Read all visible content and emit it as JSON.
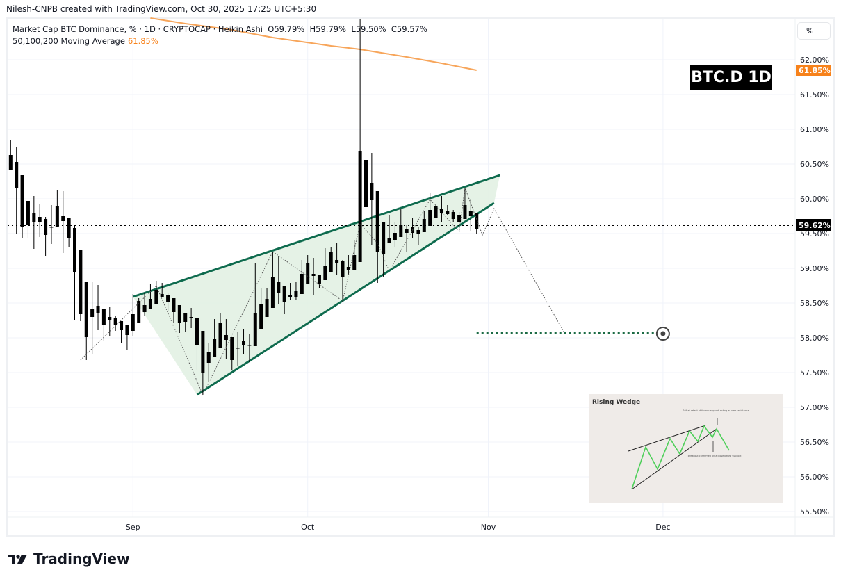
{
  "credit": "Nilesh-CNPB created with TradingView.com, Oct 30, 2025 17:25 UTC+5:30",
  "legend": {
    "symbol_line": "Market Cap BTC Dominance, % · 1D · CRYPTOCAP · Heikin Ashi",
    "open": "O59.79%",
    "high": "H59.79%",
    "low": "L59.50%",
    "close": "C59.57%",
    "ma_label": "50,100,200 Moving Average",
    "ma_value": "61.85%"
  },
  "scale_button": "%",
  "symbol_badge": "BTC.D 1D",
  "logo_text": "TradingView",
  "colors": {
    "candle": "#000000",
    "ma": "#f7a55a",
    "ma_label": "#f7821b",
    "wedge": "#0e6b4e",
    "wedge_fill": "#e2f1e3",
    "target": "#1b6b45",
    "last_price_bg": "#000000"
  },
  "chart_data": {
    "type": "candlestick",
    "chart_style": "Heikin Ashi",
    "ylim": [
      55.3,
      62.6
    ],
    "y_ticks": [
      "62.00%",
      "61.50%",
      "61.00%",
      "60.50%",
      "60.00%",
      "59.50%",
      "59.00%",
      "58.50%",
      "58.00%",
      "57.50%",
      "57.00%",
      "56.50%",
      "56.00%",
      "55.50%"
    ],
    "x_ticks": [
      {
        "label": "Sep",
        "date": "2025-09-01"
      },
      {
        "label": "Oct",
        "date": "2025-10-01"
      },
      {
        "label": "Nov",
        "date": "2025-11-01"
      },
      {
        "label": "Dec",
        "date": "2025-12-01"
      }
    ],
    "grid": true,
    "candles_columns": [
      "date",
      "open",
      "high",
      "low",
      "close"
    ],
    "candles": [
      [
        "2025-08-11",
        60.63,
        60.85,
        60.41,
        60.41
      ],
      [
        "2025-08-12",
        60.53,
        60.75,
        59.49,
        60.15
      ],
      [
        "2025-08-13",
        60.34,
        60.34,
        59.43,
        59.59
      ],
      [
        "2025-08-14",
        59.97,
        59.97,
        59.43,
        59.62
      ],
      [
        "2025-08-15",
        59.8,
        60.04,
        59.28,
        59.66
      ],
      [
        "2025-08-16",
        59.74,
        59.92,
        59.45,
        59.67
      ],
      [
        "2025-08-17",
        59.71,
        59.74,
        59.18,
        59.48
      ],
      [
        "2025-08-18",
        59.6,
        59.91,
        59.35,
        59.59
      ],
      [
        "2025-08-19",
        59.59,
        60.12,
        59.59,
        59.9
      ],
      [
        "2025-08-20",
        59.75,
        60.11,
        59.22,
        59.68
      ],
      [
        "2025-08-21",
        59.72,
        59.72,
        59.3,
        59.43
      ],
      [
        "2025-08-22",
        59.58,
        59.63,
        58.26,
        58.94
      ],
      [
        "2025-08-23",
        59.26,
        59.26,
        58.24,
        58.34
      ],
      [
        "2025-08-24",
        58.81,
        58.81,
        57.68,
        58.01
      ],
      [
        "2025-08-25",
        58.42,
        58.8,
        57.76,
        58.3
      ],
      [
        "2025-08-26",
        58.46,
        58.76,
        58.11,
        58.35
      ],
      [
        "2025-08-27",
        58.41,
        58.41,
        57.95,
        58.18
      ],
      [
        "2025-08-28",
        58.3,
        58.44,
        58.03,
        58.25
      ],
      [
        "2025-08-29",
        58.28,
        58.31,
        58.1,
        58.18
      ],
      [
        "2025-08-30",
        58.24,
        58.24,
        57.92,
        58.11
      ],
      [
        "2025-08-31",
        58.18,
        58.18,
        57.83,
        58.04
      ],
      [
        "2025-09-01",
        58.1,
        58.63,
        58.02,
        58.34
      ],
      [
        "2025-09-02",
        58.22,
        58.57,
        58.22,
        58.53
      ],
      [
        "2025-09-03",
        58.37,
        58.65,
        58.32,
        58.47
      ],
      [
        "2025-09-04",
        58.41,
        58.77,
        58.41,
        58.56
      ],
      [
        "2025-09-05",
        58.48,
        58.82,
        58.48,
        58.69
      ],
      [
        "2025-09-06",
        58.63,
        58.79,
        58.58,
        58.58
      ],
      [
        "2025-09-07",
        58.61,
        58.64,
        58.38,
        58.51
      ],
      [
        "2025-09-08",
        58.57,
        58.57,
        58.21,
        58.37
      ],
      [
        "2025-09-09",
        58.47,
        58.47,
        58.07,
        58.22
      ],
      [
        "2025-09-10",
        58.35,
        58.35,
        58.08,
        58.23
      ],
      [
        "2025-09-11",
        58.3,
        58.43,
        58.14,
        58.29
      ],
      [
        "2025-09-12",
        58.29,
        58.29,
        57.54,
        57.9
      ],
      [
        "2025-09-13",
        58.1,
        58.1,
        57.17,
        57.49
      ],
      [
        "2025-09-14",
        57.8,
        57.92,
        57.37,
        57.64
      ],
      [
        "2025-09-15",
        57.72,
        58.27,
        57.72,
        57.99
      ],
      [
        "2025-09-16",
        57.85,
        58.36,
        57.85,
        58.22
      ],
      [
        "2025-09-17",
        58.04,
        58.27,
        57.69,
        57.97
      ],
      [
        "2025-09-18",
        58.01,
        58.01,
        57.53,
        57.68
      ],
      [
        "2025-09-19",
        57.86,
        58.08,
        57.59,
        57.85
      ],
      [
        "2025-09-20",
        57.89,
        58.12,
        57.77,
        57.95
      ],
      [
        "2025-09-21",
        57.9,
        58.05,
        57.65,
        57.89
      ],
      [
        "2025-09-22",
        57.88,
        59.07,
        57.88,
        58.36
      ],
      [
        "2025-09-23",
        58.12,
        58.72,
        58.12,
        58.49
      ],
      [
        "2025-09-24",
        58.3,
        58.72,
        58.3,
        58.56
      ],
      [
        "2025-09-25",
        58.43,
        59.24,
        58.43,
        58.88
      ],
      [
        "2025-09-26",
        58.65,
        59.17,
        58.49,
        58.81
      ],
      [
        "2025-09-27",
        58.74,
        58.74,
        58.34,
        58.51
      ],
      [
        "2025-09-28",
        58.62,
        58.79,
        58.54,
        58.59
      ],
      [
        "2025-09-29",
        58.59,
        58.81,
        58.55,
        58.67
      ],
      [
        "2025-09-30",
        58.63,
        59.12,
        58.63,
        58.92
      ],
      [
        "2025-10-01",
        58.77,
        59.19,
        58.77,
        59.07
      ],
      [
        "2025-10-02",
        58.92,
        59.15,
        58.61,
        58.89
      ],
      [
        "2025-10-03",
        58.9,
        58.9,
        58.72,
        58.77
      ],
      [
        "2025-10-04",
        58.83,
        59.29,
        58.83,
        59.03
      ],
      [
        "2025-10-05",
        58.94,
        59.31,
        58.94,
        59.23
      ],
      [
        "2025-10-06",
        59.12,
        59.37,
        58.91,
        59.07
      ],
      [
        "2025-10-07",
        59.1,
        59.12,
        58.51,
        58.88
      ],
      [
        "2025-10-08",
        59.02,
        59.19,
        58.9,
        58.98
      ],
      [
        "2025-10-09",
        58.97,
        59.4,
        58.97,
        59.19
      ],
      [
        "2025-10-10",
        59.09,
        62.59,
        59.09,
        60.69
      ],
      [
        "2025-10-11",
        60.56,
        60.96,
        59.88,
        59.88
      ],
      [
        "2025-10-12",
        60.23,
        60.66,
        59.34,
        59.98
      ],
      [
        "2025-10-13",
        60.11,
        60.11,
        58.79,
        59.23
      ],
      [
        "2025-10-14",
        59.67,
        59.67,
        58.87,
        59.2
      ],
      [
        "2025-10-15",
        59.44,
        59.76,
        59.36,
        59.36
      ],
      [
        "2025-10-16",
        59.4,
        59.67,
        59.3,
        59.51
      ],
      [
        "2025-10-17",
        59.45,
        59.85,
        59.45,
        59.62
      ],
      [
        "2025-10-18",
        59.51,
        59.62,
        59.24,
        59.56
      ],
      [
        "2025-10-19",
        59.51,
        59.72,
        59.44,
        59.59
      ],
      [
        "2025-10-20",
        59.49,
        59.59,
        59.34,
        59.55
      ],
      [
        "2025-10-21",
        59.52,
        59.83,
        59.52,
        59.71
      ],
      [
        "2025-10-22",
        59.61,
        60.09,
        59.61,
        59.84
      ],
      [
        "2025-10-23",
        59.72,
        59.93,
        59.72,
        59.89
      ],
      [
        "2025-10-24",
        59.8,
        60.04,
        59.67,
        59.86
      ],
      [
        "2025-10-25",
        59.78,
        59.91,
        59.76,
        59.83
      ],
      [
        "2025-10-26",
        59.81,
        59.84,
        59.67,
        59.71
      ],
      [
        "2025-10-27",
        59.77,
        59.81,
        59.52,
        59.67
      ],
      [
        "2025-10-28",
        59.71,
        60.16,
        59.71,
        59.91
      ],
      [
        "2025-10-29",
        59.82,
        59.99,
        59.54,
        59.75
      ],
      [
        "2025-10-30",
        59.79,
        59.79,
        59.5,
        59.57
      ]
    ],
    "moving_average": {
      "label": "50,100,200 Moving Average",
      "points": [
        [
          "2025-09-04",
          62.6
        ],
        [
          "2025-09-10",
          62.52
        ],
        [
          "2025-09-18",
          62.43
        ],
        [
          "2025-09-25",
          62.32
        ],
        [
          "2025-10-05",
          62.2
        ],
        [
          "2025-10-10",
          62.15
        ],
        [
          "2025-10-18",
          62.04
        ],
        [
          "2025-10-24",
          61.95
        ],
        [
          "2025-10-30",
          61.85
        ]
      ],
      "last_label": "61.85%"
    },
    "last_price": {
      "value": 59.62,
      "label": "59.62%"
    },
    "wedge": {
      "upper": [
        [
          "2025-09-01",
          58.59
        ],
        [
          "2025-11-03",
          60.34
        ]
      ],
      "lower": [
        [
          "2025-09-12",
          57.18
        ],
        [
          "2025-11-02",
          59.94
        ]
      ]
    },
    "projection_path": [
      [
        "2025-08-23",
        57.68
      ],
      [
        "2025-09-05",
        58.75
      ],
      [
        "2025-09-13",
        57.18
      ],
      [
        "2025-09-25",
        59.24
      ],
      [
        "2025-10-07",
        58.53
      ],
      [
        "2025-10-10",
        59.64
      ],
      [
        "2025-10-13",
        59.36
      ],
      [
        "2025-10-15",
        58.96
      ],
      [
        "2025-10-22",
        59.99
      ],
      [
        "2025-10-27",
        59.53
      ],
      [
        "2025-10-28",
        60.16
      ],
      [
        "2025-10-31",
        59.48
      ],
      [
        "2025-11-02",
        59.86
      ],
      [
        "2025-11-14",
        58.08
      ]
    ],
    "target": {
      "value": 58.07,
      "from": "2025-10-30",
      "to": "2025-12-01"
    }
  },
  "inset": {
    "title": "Rising Wedge",
    "note_top": "Sell at retest of former support acting as new resistance",
    "note_bottom": "Breakout confirmed on a close below support"
  }
}
